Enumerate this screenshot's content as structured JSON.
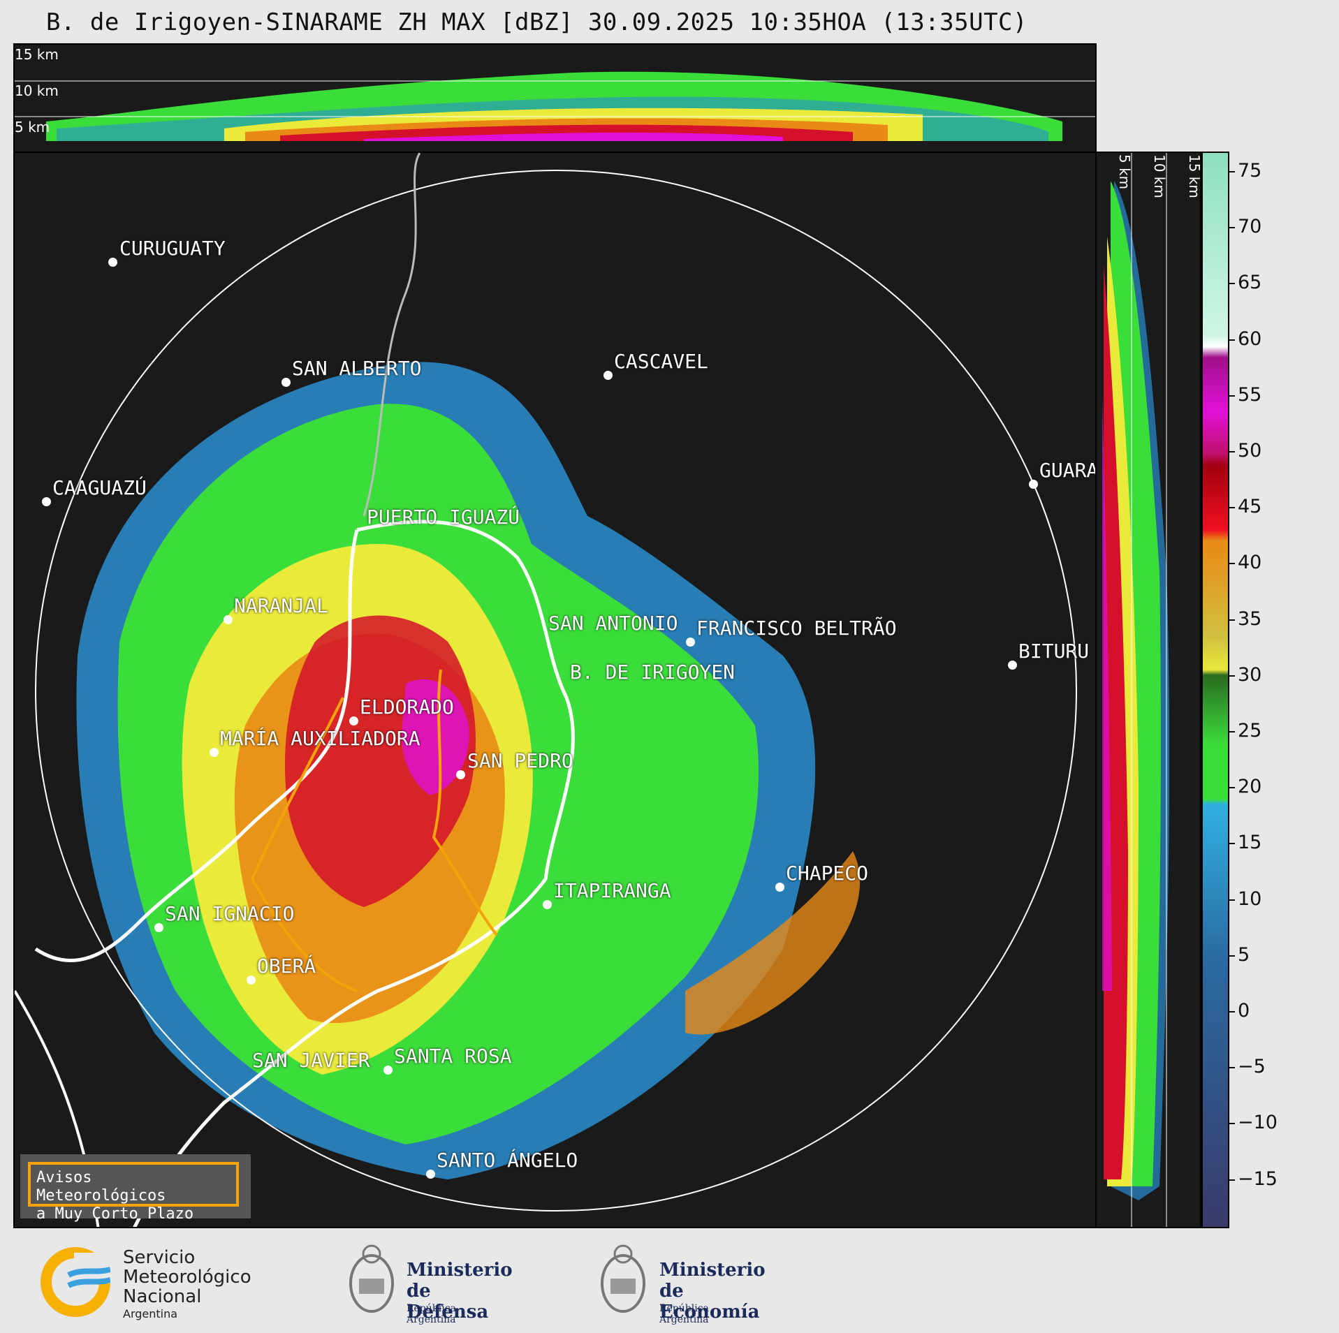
{
  "title": "B. de Irigoyen-SINARAME ZH MAX [dBZ] 30.09.2025 10:35HOA (13:35UTC)",
  "top_section": {
    "height_labels": [
      "15 km",
      "10 km",
      "5 km"
    ]
  },
  "right_section": {
    "height_labels": [
      "5 km",
      "10 km",
      "15 km"
    ]
  },
  "cities": [
    {
      "name": "CURUGUATY"
    },
    {
      "name": "SAN ALBERTO"
    },
    {
      "name": "CASCAVEL"
    },
    {
      "name": "CAAGUAZÚ"
    },
    {
      "name": "GUARA"
    },
    {
      "name": "PUERTO IGUAZÚ"
    },
    {
      "name": "NARANJAL"
    },
    {
      "name": "SAN ANTONIO"
    },
    {
      "name": "FRANCISCO BELTRÃO"
    },
    {
      "name": "BITURU"
    },
    {
      "name": "B. DE IRIGOYEN"
    },
    {
      "name": "ELDORADO"
    },
    {
      "name": "MARÍA AUXILIADORA"
    },
    {
      "name": "SAN PEDRO"
    },
    {
      "name": "CHAPECO"
    },
    {
      "name": "ITAPIRANGA"
    },
    {
      "name": "SAN IGNACIO"
    },
    {
      "name": "OBERÁ"
    },
    {
      "name": "SAN JAVIER"
    },
    {
      "name": "SANTA ROSA"
    },
    {
      "name": "SANTO ÁNGELO"
    }
  ],
  "warning_box": {
    "line1": "Avisos Meteorológicos",
    "line2": "a Muy Corto Plazo"
  },
  "colorbar": {
    "ticks": [
      "75",
      "70",
      "65",
      "60",
      "55",
      "50",
      "45",
      "40",
      "35",
      "30",
      "25",
      "20",
      "15",
      "10",
      "5",
      "0",
      "−5",
      "−10",
      "−15"
    ],
    "colors": {
      "low": "#3b3a6a",
      "blue": "#2a8fd0",
      "green": "#3bdd3b",
      "yellow": "#eaea3a",
      "orange": "#e98a16",
      "red": "#d4102a",
      "magenta": "#e010d8",
      "white": "#ffffff",
      "teal": "#8fe0c0"
    }
  },
  "logos": {
    "smn": {
      "line1": "Servicio",
      "line2": "Meteorológico",
      "line3": "Nacional",
      "line4": "Argentina"
    },
    "defensa": {
      "line1": "Ministerio",
      "line2": "de Defensa",
      "line3": "República Argentina"
    },
    "economia": {
      "line1": "Ministerio",
      "line2": "de Economía",
      "line3": "República Argentina"
    }
  }
}
